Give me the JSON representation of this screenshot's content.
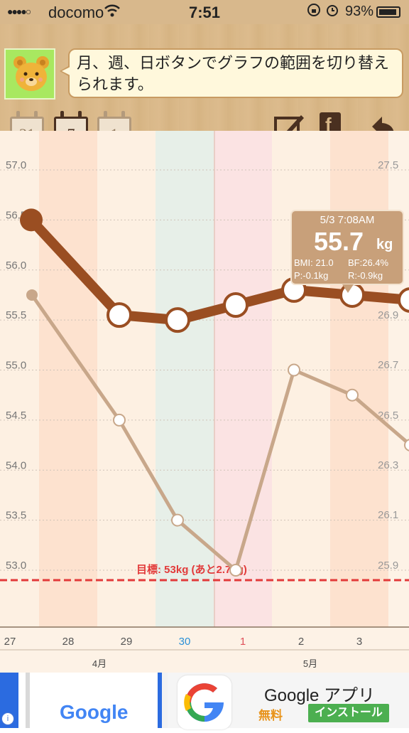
{
  "status": {
    "signal": "●●●●○",
    "carrier": "docomo",
    "time": "7:51",
    "battery": "93%"
  },
  "header": {
    "tip": "月、週、日ボタンでグラフの範囲を切り替えられます。",
    "calendar_buttons": [
      {
        "label": "31",
        "active": false
      },
      {
        "label": "7",
        "active": true
      },
      {
        "label": "1",
        "active": false
      }
    ]
  },
  "colors": {
    "weight_line": "#9a4e22",
    "bmi_line": "#c8a78a",
    "goal_line": "#e23a3a",
    "today_band": "#e7efe8",
    "selected_band": "#fbe3e3"
  },
  "chart_data": {
    "type": "line",
    "x_labels": [
      "27",
      "28",
      "29",
      "30",
      "1",
      "2",
      "3"
    ],
    "month_labels": [
      "4月",
      "5月"
    ],
    "left_axis": {
      "ticks": [
        "57.0",
        "56.5",
        "56.0",
        "55.5",
        "55.0",
        "54.5",
        "54.0",
        "53.5",
        "53.0"
      ],
      "range": [
        53.0,
        57.0
      ]
    },
    "right_axis": {
      "ticks": [
        "27.5",
        "26.9",
        "26.7",
        "26.5",
        "26.3",
        "26.1",
        "25.9"
      ]
    },
    "series": [
      {
        "values": [
          56.5,
          55.55,
          55.5,
          55.65,
          55.8,
          55.75,
          55.7
        ]
      },
      {
        "values": [
          55.75,
          54.5,
          53.5,
          53.0,
          55.0,
          54.75,
          54.25
        ]
      }
    ],
    "goal": {
      "value": 53.0,
      "label": "目標: 53kg (あと2.7kg)"
    },
    "tooltip": {
      "datetime": "5/3 7:08AM",
      "weight": "55.7",
      "unit": "kg",
      "bmi": "BMI: 21.0",
      "bf": "BF:26.4%",
      "p": "P:-0.1kg",
      "r": "R:-0.9kg"
    }
  },
  "ad": {
    "left_brand": "Google",
    "app_name": "Google アプリ",
    "price": "無料",
    "install_label": "インストール"
  }
}
